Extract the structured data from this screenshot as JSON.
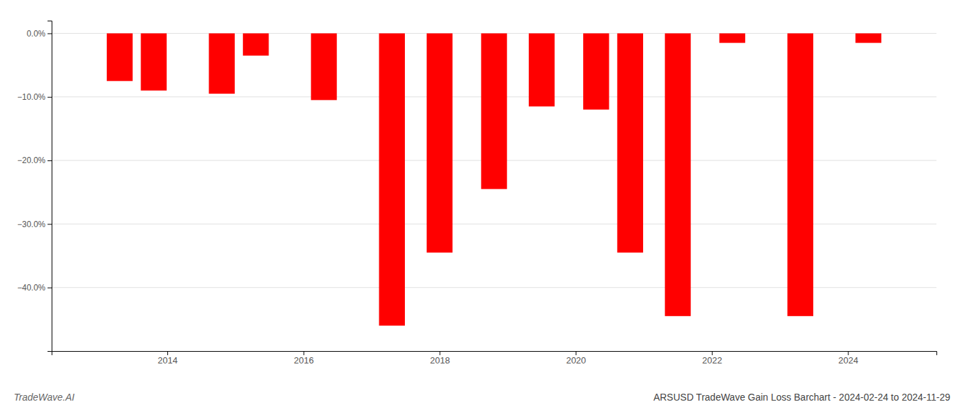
{
  "chart_data": {
    "type": "bar",
    "title": "ARSUSD TradeWave Gain Loss Barchart - 2024-02-24 to 2024-11-29",
    "annotations": [
      "TradeWave.AI"
    ],
    "x": [
      2013.3,
      2013.8,
      2014.8,
      2015.3,
      2016.3,
      2017.3,
      2018.0,
      2018.8,
      2019.5,
      2020.3,
      2020.8,
      2021.5,
      2022.3,
      2023.3,
      2024.3
    ],
    "values": [
      -7.5,
      -9.0,
      -9.5,
      -3.5,
      -10.5,
      -46.0,
      -34.5,
      -24.5,
      -11.5,
      -12.0,
      -34.5,
      -44.5,
      -1.5,
      -44.5,
      -1.5
    ],
    "color": "#ff0000",
    "xlim": [
      2012.3,
      2025.3
    ],
    "xticks": [
      2014,
      2016,
      2018,
      2020,
      2022,
      2024
    ],
    "ylim": [
      -50,
      2
    ],
    "yticks": [
      {
        "value": 0.0,
        "label": "0.0%"
      },
      {
        "value": -10.0,
        "label": "−10.0%"
      },
      {
        "value": -20.0,
        "label": "−20.0%"
      },
      {
        "value": -30.0,
        "label": "−30.0%"
      },
      {
        "value": -40.0,
        "label": "−40.0%"
      }
    ],
    "grid": true
  }
}
